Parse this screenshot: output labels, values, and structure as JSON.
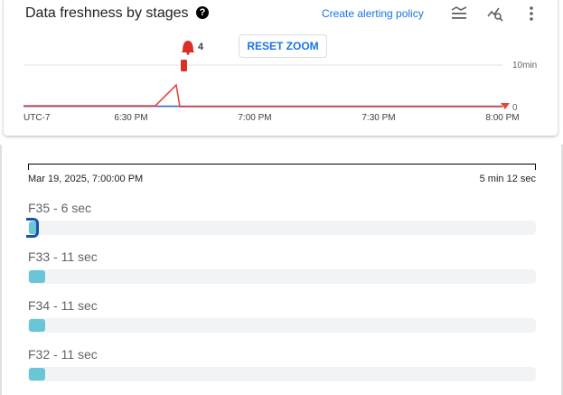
{
  "header": {
    "title": "Data freshness by stages",
    "help_icon": "?",
    "create_alert_label": "Create alerting policy",
    "icons": [
      "legend-icon",
      "explore-icon",
      "more-vert-icon"
    ]
  },
  "chart": {
    "reset_zoom_label": "RESET ZOOM",
    "alert_count": "4",
    "colors": {
      "series_red": "#e8453c",
      "series_blue": "#3367d6",
      "alert": "#d93025"
    }
  },
  "chart_data": {
    "type": "line",
    "timezone_label": "UTC-7",
    "x_ticks": [
      "6:30 PM",
      "7:00 PM",
      "7:30 PM",
      "8:00 PM"
    ],
    "y_ticks": [
      "0",
      "10min"
    ],
    "ylim_minutes": [
      0,
      10
    ],
    "series": [
      {
        "x": [
          "6:04 PM",
          "6:36 PM",
          "6:41 PM",
          "6:42 PM",
          "8:00 PM"
        ],
        "values_minutes": [
          0.1,
          0.1,
          5.2,
          0,
          0
        ]
      }
    ],
    "alert_time": "6:43 PM"
  },
  "selection": {
    "start": "Mar 19, 2025, 7:00:00 PM",
    "end": "5 min 12 sec"
  },
  "stages": [
    {
      "label": "F35 - 6 sec",
      "seconds": 6,
      "selected": true
    },
    {
      "label": "F33 - 11 sec",
      "seconds": 11
    },
    {
      "label": "F34 - 11 sec",
      "seconds": 11
    },
    {
      "label": "F32 - 11 sec",
      "seconds": 11
    }
  ]
}
